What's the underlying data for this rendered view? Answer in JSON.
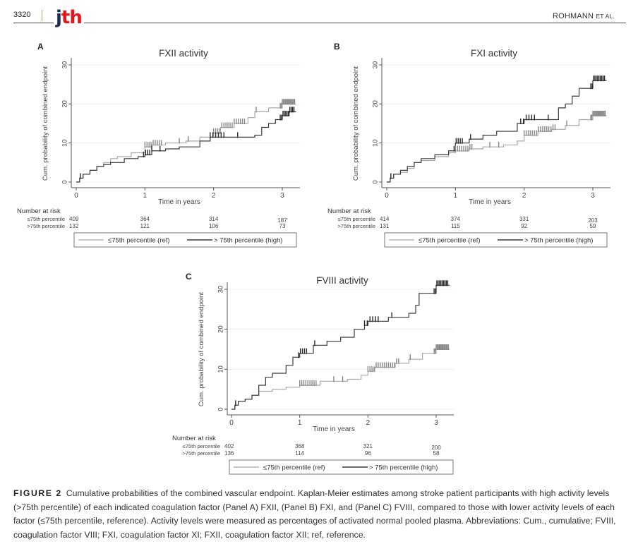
{
  "header": {
    "page_number": "3320",
    "journal_logo": {
      "j": "j",
      "th": "th"
    },
    "author": "ROHMANN",
    "author_suffix": "ET AL."
  },
  "colors": {
    "logo_j": "#1b2a5c",
    "logo_th": "#e8141c",
    "ref_line": "#a8a8a8",
    "high_line": "#3a3a3a"
  },
  "chart_data": [
    {
      "panel": "A",
      "type": "line",
      "title": "FXII activity",
      "xlabel": "Time in years",
      "ylabel": "Cum. probability of combined endpoint",
      "xlim": [
        0,
        3.2
      ],
      "ylim": [
        0,
        33
      ],
      "xticks": [
        0,
        1,
        2,
        3
      ],
      "yticks": [
        0,
        10,
        20,
        30
      ],
      "grid": true,
      "series": [
        {
          "name": "≤75th percentile (ref)",
          "x": [
            0,
            0.05,
            0.1,
            0.2,
            0.3,
            0.4,
            0.5,
            0.6,
            0.8,
            1.0,
            1.1,
            1.3,
            1.6,
            1.8,
            2.0,
            2.1,
            2.3,
            2.5,
            2.6,
            2.8,
            3.0,
            3.2
          ],
          "y": [
            0,
            1,
            2,
            3,
            4,
            5,
            6,
            6.5,
            7.5,
            9,
            9.5,
            10,
            10.5,
            11.5,
            12.5,
            14,
            15,
            16.5,
            18,
            19,
            20,
            20
          ]
        },
        {
          "name": "> 75th percentile (high)",
          "x": [
            0,
            0.05,
            0.1,
            0.2,
            0.3,
            0.4,
            0.5,
            0.7,
            0.9,
            1.0,
            1.1,
            1.3,
            1.5,
            1.8,
            1.95,
            2.1,
            2.6,
            2.7,
            2.8,
            2.9,
            3.0,
            3.1,
            3.2
          ],
          "y": [
            0,
            1,
            2,
            3,
            4,
            4.5,
            5,
            6,
            6.5,
            7,
            8,
            8.5,
            9,
            10.5,
            11.5,
            11.5,
            12,
            14,
            15,
            16,
            17,
            18,
            18
          ]
        }
      ],
      "risk_table": {
        "title": "Number at risk",
        "rows": [
          {
            "label": "≤75th percentile",
            "values": [
              409,
              364,
              314,
              187
            ]
          },
          {
            "label": ">75th percentile",
            "values": [
              132,
              121,
              106,
              73
            ]
          }
        ]
      },
      "legend": {
        "ref": "≤75th percentile (ref)",
        "high": "> 75th percentile (high)",
        "placement": "bottom"
      }
    },
    {
      "panel": "B",
      "type": "line",
      "title": "FXI activity",
      "xlabel": "Time in years",
      "ylabel": "Cum. probability of combined endpoint",
      "xlim": [
        0,
        3.2
      ],
      "ylim": [
        0,
        33
      ],
      "xticks": [
        0,
        1,
        2,
        3
      ],
      "yticks": [
        0,
        10,
        20,
        30
      ],
      "grid": true,
      "series": [
        {
          "name": "≤75th percentile (ref)",
          "x": [
            0,
            0.05,
            0.1,
            0.2,
            0.3,
            0.4,
            0.5,
            0.7,
            0.9,
            1.0,
            1.2,
            1.4,
            1.7,
            1.9,
            2.0,
            2.2,
            2.4,
            2.6,
            2.8,
            3.0,
            3.2
          ],
          "y": [
            0,
            1,
            2,
            2.5,
            3.5,
            5,
            5.5,
            6.5,
            7.5,
            8,
            8.5,
            9,
            9.5,
            10.5,
            12,
            13,
            13.5,
            14.5,
            16,
            17,
            17
          ]
        },
        {
          "name": "> 75th percentile (high)",
          "x": [
            0,
            0.05,
            0.1,
            0.2,
            0.3,
            0.4,
            0.5,
            0.7,
            0.9,
            1.0,
            1.2,
            1.4,
            1.6,
            1.9,
            2.0,
            2.4,
            2.5,
            2.6,
            2.7,
            2.8,
            2.95,
            3.0,
            3.2
          ],
          "y": [
            0,
            1,
            2,
            3,
            4,
            5,
            6,
            7,
            8,
            10,
            11,
            12,
            13,
            15,
            16,
            16,
            19,
            20,
            22,
            24,
            24,
            26,
            26
          ]
        }
      ],
      "risk_table": {
        "title": "Number at risk",
        "rows": [
          {
            "label": "≤75th percentile",
            "values": [
              414,
              374,
              331,
              203
            ]
          },
          {
            "label": ">75th percentile",
            "values": [
              131,
              115,
              92,
              59
            ]
          }
        ]
      },
      "legend": {
        "ref": "≤75th percentile (ref)",
        "high": "> 75th percentile (high)",
        "placement": "bottom"
      }
    },
    {
      "panel": "C",
      "type": "line",
      "title": "FVIII activity",
      "xlabel": "Time in years",
      "ylabel": "Cum. probability of combined endpoint",
      "xlim": [
        0,
        3.2
      ],
      "ylim": [
        0,
        33
      ],
      "xticks": [
        0,
        1,
        2,
        3
      ],
      "yticks": [
        0,
        10,
        20,
        30
      ],
      "grid": true,
      "series": [
        {
          "name": "≤75th percentile (ref)",
          "x": [
            0,
            0.05,
            0.1,
            0.2,
            0.3,
            0.4,
            0.6,
            0.8,
            1.0,
            1.3,
            1.7,
            1.9,
            2.0,
            2.1,
            2.4,
            2.6,
            2.8,
            3.0,
            3.2
          ],
          "y": [
            0,
            1,
            2,
            2.5,
            3.5,
            4.5,
            5,
            5.5,
            6,
            7,
            7.5,
            8.5,
            9.5,
            10.5,
            11.5,
            12.5,
            14,
            15,
            15
          ]
        },
        {
          "name": "> 75th percentile (high)",
          "x": [
            0,
            0.05,
            0.1,
            0.2,
            0.3,
            0.4,
            0.5,
            0.6,
            0.8,
            0.9,
            1.0,
            1.2,
            1.4,
            1.6,
            1.8,
            1.95,
            2.0,
            2.3,
            2.6,
            2.7,
            2.75,
            3.0,
            3.2
          ],
          "y": [
            0,
            1,
            2,
            2.5,
            3.5,
            6,
            8,
            9,
            11,
            13,
            14,
            16,
            17,
            18,
            20,
            21,
            22,
            23,
            24,
            26,
            29,
            31,
            31
          ]
        }
      ],
      "risk_table": {
        "title": "Number at risk",
        "rows": [
          {
            "label": "≤75th percentile",
            "values": [
              402,
              368,
              321,
              200
            ]
          },
          {
            "label": ">75th percentile",
            "values": [
              136,
              114,
              96,
              58
            ]
          }
        ]
      },
      "legend": {
        "ref": "≤75th percentile (ref)",
        "high": "> 75th percentile (high)",
        "placement": "bottom"
      }
    }
  ],
  "caption": {
    "label": "FIGURE 2",
    "text": "Cumulative probabilities of the combined vascular endpoint. Kaplan-Meier estimates among stroke patient participants with high activity levels (>75th percentile) of each indicated coagulation factor (Panel A) FXII, (Panel B) FXI, and (Panel C) FVIII, compared to those with lower activity levels of each factor (≤75th percentile, reference). Activity levels were measured as percentages of activated normal pooled plasma. Abbreviations: Cum., cumulative; FVIII, coagulation factor VIII; FXI, coagulation factor XI; FXII, coagulation factor XII; ref, reference."
  }
}
